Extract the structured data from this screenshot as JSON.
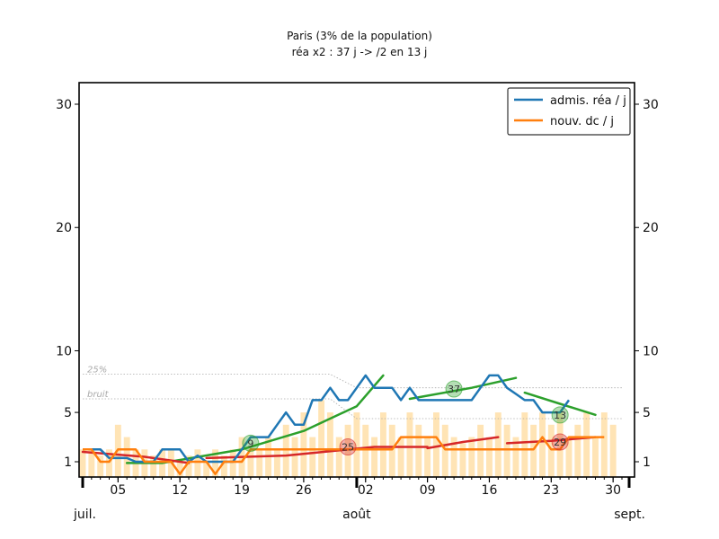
{
  "chart_data": {
    "type": "line",
    "title": "Paris (3% de la population)",
    "subtitle": "réa x2 : 37 j -> /2 en 13 j",
    "xlabel": "",
    "ylabel": "",
    "x_start": "2020-07-01",
    "x_end": "2020-08-31",
    "ylim": [
      0,
      32
    ],
    "yticks": [
      1,
      5,
      10,
      20,
      30
    ],
    "xticks": [
      {
        "date": "2020-07-05",
        "label": "05"
      },
      {
        "date": "2020-07-12",
        "label": "12"
      },
      {
        "date": "2020-07-19",
        "label": "19"
      },
      {
        "date": "2020-07-26",
        "label": "26"
      },
      {
        "date": "2020-08-02",
        "label": "02"
      },
      {
        "date": "2020-08-09",
        "label": "09"
      },
      {
        "date": "2020-08-16",
        "label": "16"
      },
      {
        "date": "2020-08-23",
        "label": "23"
      },
      {
        "date": "2020-08-30",
        "label": "30"
      }
    ],
    "month_labels": [
      {
        "date": "2020-07-01",
        "label": "juil."
      },
      {
        "date": "2020-08-01",
        "label": "août"
      },
      {
        "date": "2020-09-01",
        "label": "sept."
      }
    ],
    "legend": {
      "position": "top-right",
      "entries": [
        {
          "label": "admis. réa / j",
          "color": "#1f77b4"
        },
        {
          "label": "nouv. dc / j",
          "color": "#ff7f0e"
        }
      ]
    },
    "reference_lines": [
      {
        "label": "25%",
        "color": "#aaaaaa",
        "points": [
          [
            "2020-07-01",
            8.1
          ],
          [
            "2020-07-29",
            8.1
          ],
          [
            "2020-08-01",
            7.0
          ],
          [
            "2020-08-31",
            7.0
          ]
        ]
      },
      {
        "label": "bruit",
        "color": "#aaaaaa",
        "points": [
          [
            "2020-07-01",
            6.1
          ],
          [
            "2020-07-29",
            6.1
          ],
          [
            "2020-08-01",
            4.5
          ],
          [
            "2020-08-31",
            4.5
          ]
        ]
      }
    ],
    "bars": {
      "color": "#ffe4b5",
      "x_first": "2020-07-01",
      "values": [
        2,
        2,
        1.5,
        2,
        4,
        3,
        2,
        2,
        1.5,
        2,
        2,
        1,
        1.5,
        2,
        1,
        2,
        1.5,
        2,
        3,
        2,
        2,
        3,
        2,
        4,
        3,
        5,
        3,
        6,
        5,
        3,
        4,
        5,
        4,
        3,
        5,
        4,
        3,
        5,
        4,
        3,
        5,
        4,
        3,
        2.5,
        3,
        4,
        3,
        5,
        4,
        3,
        5,
        4,
        5,
        4,
        5,
        3,
        4,
        5,
        3,
        5,
        4
      ]
    },
    "series": [
      {
        "name": "admis. réa / j",
        "color": "#1f77b4",
        "x_first": "2020-07-01",
        "values": [
          2,
          2,
          2,
          1.3,
          1.3,
          1.3,
          1,
          1,
          1,
          2,
          2,
          2,
          1,
          1.5,
          1,
          1,
          1,
          1,
          2,
          3,
          3,
          3,
          4,
          5,
          4,
          4,
          6,
          6,
          7,
          6,
          6,
          7,
          8,
          7,
          7,
          7,
          6,
          7,
          6,
          6,
          6,
          6,
          6,
          6,
          6,
          7,
          8,
          8,
          7,
          6.5,
          6,
          6,
          5,
          5,
          5,
          6
        ]
      },
      {
        "name": "nouv. dc / j",
        "color": "#ff7f0e",
        "x_first": "2020-07-01",
        "values": [
          2,
          2,
          1,
          1,
          2,
          2,
          2,
          1,
          1,
          1,
          1,
          0,
          1,
          1,
          1,
          0,
          1,
          1,
          1,
          2,
          2,
          2,
          2,
          2,
          2,
          2,
          2,
          2,
          2,
          2,
          2,
          2,
          2,
          2,
          2,
          2,
          3,
          3,
          3,
          3,
          3,
          2,
          2,
          2,
          2,
          2,
          2,
          2,
          2,
          2,
          2,
          2,
          3,
          2,
          2,
          3,
          3,
          3,
          3,
          3
        ]
      }
    ],
    "trend_lines": [
      {
        "color": "#2ca02c",
        "points": [
          [
            "2020-07-06",
            0.9
          ],
          [
            "2020-07-10",
            0.9
          ],
          [
            "2020-07-19",
            2.0
          ],
          [
            "2020-07-26",
            3.5
          ],
          [
            "2020-08-01",
            5.5
          ],
          [
            "2020-08-04",
            8.0
          ]
        ]
      },
      {
        "color": "#2ca02c",
        "points": [
          [
            "2020-08-07",
            6.1
          ],
          [
            "2020-08-14",
            7.0
          ],
          [
            "2020-08-19",
            7.8
          ]
        ]
      },
      {
        "color": "#2ca02c",
        "points": [
          [
            "2020-08-20",
            6.6
          ],
          [
            "2020-08-24",
            5.7
          ],
          [
            "2020-08-28",
            4.8
          ]
        ]
      },
      {
        "color": "#d62728",
        "points": [
          [
            "2020-07-01",
            1.8
          ],
          [
            "2020-07-08",
            1.4
          ],
          [
            "2020-07-13",
            0.9
          ]
        ]
      },
      {
        "color": "#d62728",
        "points": [
          [
            "2020-07-15",
            1.3
          ],
          [
            "2020-07-24",
            1.5
          ],
          [
            "2020-08-03",
            2.2
          ],
          [
            "2020-08-09",
            2.2
          ]
        ]
      },
      {
        "color": "#d62728",
        "points": [
          [
            "2020-08-09",
            2.1
          ],
          [
            "2020-08-13",
            2.6
          ],
          [
            "2020-08-17",
            3.0
          ]
        ]
      },
      {
        "color": "#d62728",
        "points": [
          [
            "2020-08-18",
            2.5
          ],
          [
            "2020-08-23",
            2.7
          ],
          [
            "2020-08-28",
            3.0
          ]
        ]
      }
    ],
    "annotations": [
      {
        "label": "9",
        "date": "2020-07-20",
        "value": 2.5,
        "color": "#2ca02c"
      },
      {
        "label": "37",
        "date": "2020-08-12",
        "value": 6.9,
        "color": "#2ca02c"
      },
      {
        "label": "13",
        "date": "2020-08-24",
        "value": 4.8,
        "color": "#2ca02c"
      },
      {
        "label": "25",
        "date": "2020-07-31",
        "value": 2.2,
        "color": "#d62728"
      },
      {
        "label": "29",
        "date": "2020-08-24",
        "value": 2.6,
        "color": "#d62728"
      }
    ]
  }
}
